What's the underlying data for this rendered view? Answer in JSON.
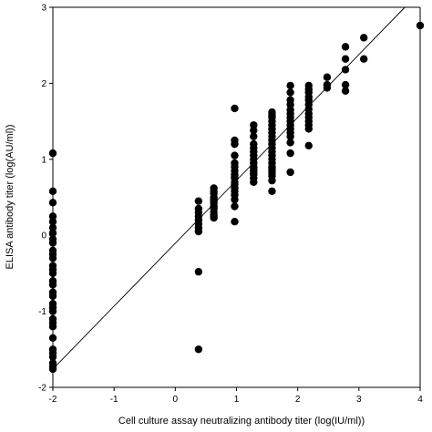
{
  "chart_data": {
    "type": "scatter",
    "xlabel": "Cell culture assay neutralizing antibody titer (log(IU/ml))",
    "ylabel": "ELISA antibody titer (log(AU/ml))",
    "xlim": [
      -2,
      4
    ],
    "ylim": [
      -2,
      3
    ],
    "xticks": [
      -2,
      -1,
      0,
      1,
      2,
      3,
      4
    ],
    "yticks": [
      -2,
      -1,
      0,
      1,
      2,
      3
    ],
    "xtick_labels": [
      "-2",
      "-1",
      "0",
      "1",
      "2",
      "3",
      "4"
    ],
    "ytick_labels": [
      "-2",
      "-1",
      "0",
      "1",
      "2",
      "3"
    ],
    "grid": false,
    "marker_color": "#000000",
    "regression_line": {
      "x": [
        -2,
        3.75
      ],
      "y": [
        -1.76,
        3.0
      ]
    },
    "series": [
      {
        "x": [
          -2,
          -2,
          -2,
          -2,
          -2,
          -2,
          -2,
          -2,
          -2,
          -2,
          -2,
          -2,
          -2,
          -2,
          -2,
          -2,
          -2,
          -2,
          -2,
          -2,
          -2,
          -2,
          -2,
          -2,
          -2,
          -2,
          -2,
          -2,
          -2,
          -2,
          -2,
          -2,
          0.38,
          0.38,
          0.38,
          0.38,
          0.38,
          0.38,
          0.38,
          0.38,
          0.38,
          0.38,
          0.63,
          0.63,
          0.63,
          0.63,
          0.63,
          0.63,
          0.63,
          0.63,
          0.63,
          0.63,
          0.63,
          0.63,
          0.97,
          0.97,
          0.97,
          0.97,
          0.97,
          0.97,
          0.97,
          0.97,
          0.97,
          0.97,
          0.97,
          0.97,
          0.97,
          0.97,
          0.97,
          0.97,
          0.97,
          0.97,
          1.28,
          1.28,
          1.28,
          1.28,
          1.28,
          1.28,
          1.28,
          1.28,
          1.28,
          1.28,
          1.28,
          1.28,
          1.28,
          1.28,
          1.28,
          1.28,
          1.58,
          1.58,
          1.58,
          1.58,
          1.58,
          1.58,
          1.58,
          1.58,
          1.58,
          1.58,
          1.58,
          1.58,
          1.58,
          1.58,
          1.58,
          1.58,
          1.58,
          1.58,
          1.58,
          1.58,
          1.58,
          1.58,
          1.88,
          1.88,
          1.88,
          1.88,
          1.88,
          1.88,
          1.88,
          1.88,
          1.88,
          1.88,
          1.88,
          1.88,
          1.88,
          1.88,
          1.88,
          2.18,
          2.18,
          2.18,
          2.18,
          2.18,
          2.18,
          2.18,
          2.18,
          2.18,
          2.18,
          2.18,
          2.18,
          2.18,
          2.48,
          2.48,
          2.48,
          2.78,
          2.78,
          2.78,
          2.78,
          2.78,
          3.08,
          3.08,
          4.0
        ],
        "y": [
          1.08,
          0.58,
          0.43,
          0.25,
          0.18,
          0.1,
          0.03,
          -0.05,
          -0.1,
          -0.2,
          -0.25,
          -0.3,
          -0.4,
          -0.45,
          -0.5,
          -0.6,
          -0.65,
          -0.75,
          -0.8,
          -0.9,
          -0.95,
          -1.0,
          -1.1,
          -1.15,
          -1.2,
          -1.35,
          -1.5,
          -1.55,
          -1.6,
          -1.68,
          -1.73,
          -1.76,
          0.45,
          0.35,
          0.3,
          0.25,
          0.2,
          0.15,
          0.1,
          0.05,
          -0.48,
          -1.5,
          0.62,
          0.58,
          0.55,
          0.5,
          0.47,
          0.45,
          0.42,
          0.38,
          0.35,
          0.3,
          0.26,
          0.23,
          1.67,
          1.25,
          1.2,
          1.05,
          0.95,
          0.9,
          0.85,
          0.8,
          0.77,
          0.75,
          0.7,
          0.67,
          0.62,
          0.58,
          0.53,
          0.47,
          0.38,
          0.18,
          1.45,
          1.38,
          1.3,
          1.2,
          1.15,
          1.1,
          1.05,
          1.0,
          0.95,
          0.9,
          0.88,
          0.85,
          0.82,
          0.8,
          0.75,
          0.7,
          1.62,
          1.58,
          1.55,
          1.5,
          1.45,
          1.4,
          1.35,
          1.3,
          1.25,
          1.2,
          1.15,
          1.1,
          1.05,
          1.0,
          0.95,
          0.9,
          0.88,
          0.85,
          0.82,
          0.78,
          0.72,
          0.58,
          1.97,
          1.88,
          1.78,
          1.72,
          1.65,
          1.6,
          1.55,
          1.5,
          1.45,
          1.4,
          1.35,
          1.3,
          1.22,
          1.08,
          0.83,
          1.97,
          1.92,
          1.88,
          1.82,
          1.78,
          1.72,
          1.66,
          1.6,
          1.55,
          1.5,
          1.45,
          1.4,
          1.18,
          2.08,
          1.98,
          1.94,
          2.48,
          2.32,
          2.18,
          1.98,
          1.9,
          2.6,
          2.32,
          2.76
        ]
      }
    ]
  }
}
